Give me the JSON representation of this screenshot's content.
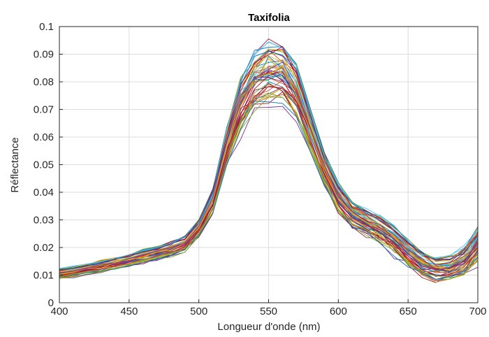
{
  "chart_data": {
    "type": "line",
    "title": "Taxifolia",
    "xlabel": "Longueur d'onde (nm)",
    "ylabel": "Réflectance",
    "xlim": [
      400,
      700
    ],
    "ylim": [
      0,
      0.1
    ],
    "x_ticks": [
      "400",
      "450",
      "500",
      "550",
      "600",
      "650",
      "700"
    ],
    "y_ticks": [
      "0",
      "0.01",
      "0.02",
      "0.03",
      "0.04",
      "0.05",
      "0.06",
      "0.07",
      "0.08",
      "0.09",
      "0.1"
    ],
    "grid": true,
    "x": [
      400,
      410,
      420,
      430,
      440,
      450,
      460,
      470,
      480,
      490,
      500,
      510,
      520,
      530,
      540,
      550,
      560,
      570,
      580,
      590,
      600,
      610,
      620,
      630,
      640,
      650,
      660,
      670,
      680,
      690,
      700
    ],
    "series_count": 60,
    "mean_values": [
      0.0105,
      0.0112,
      0.0122,
      0.0132,
      0.0143,
      0.0155,
      0.0168,
      0.018,
      0.0195,
      0.0215,
      0.027,
      0.037,
      0.056,
      0.072,
      0.08,
      0.0835,
      0.083,
      0.076,
      0.062,
      0.048,
      0.038,
      0.032,
      0.029,
      0.0265,
      0.023,
      0.018,
      0.014,
      0.012,
      0.0125,
      0.015,
      0.021
    ],
    "spread_values": [
      0.001,
      0.001,
      0.001,
      0.0012,
      0.0012,
      0.0013,
      0.0014,
      0.0014,
      0.0015,
      0.0015,
      0.0018,
      0.0025,
      0.0035,
      0.0055,
      0.006,
      0.0065,
      0.0065,
      0.0055,
      0.0045,
      0.0035,
      0.003,
      0.0028,
      0.0028,
      0.003,
      0.003,
      0.0028,
      0.0025,
      0.0025,
      0.0025,
      0.0028,
      0.0035
    ],
    "colors": [
      "#0072BD",
      "#D95319",
      "#EDB120",
      "#7E2F8E",
      "#77AC30",
      "#4DBEEE",
      "#A2142F"
    ]
  }
}
